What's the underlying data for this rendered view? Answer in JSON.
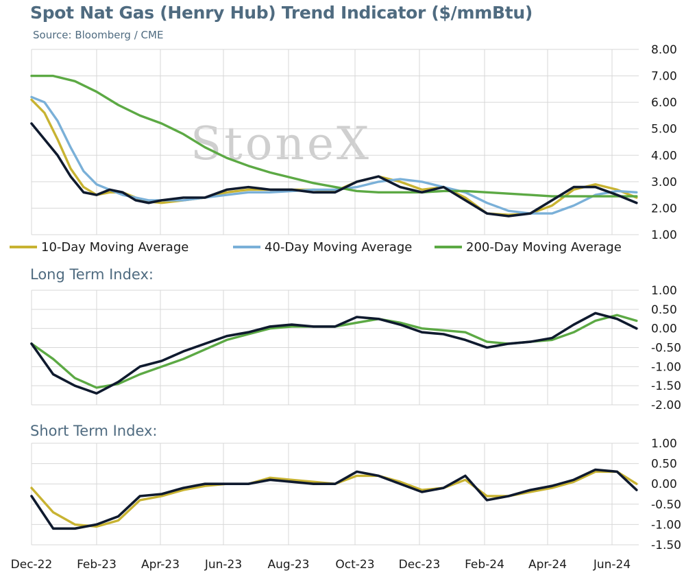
{
  "title": "Spot Nat Gas (Henry Hub) Trend Indicator ($/mmBtu)",
  "source": "Source: Bloomberg / CME",
  "watermark": "StoneX",
  "colors": {
    "spot": "#0f1a2e",
    "ma10": "#c8b332",
    "ma40": "#7ab0d8",
    "ma200": "#5ca944",
    "grid": "#d7d7d7",
    "title": "#4f6b80"
  },
  "chart_data": [
    {
      "type": "line",
      "title": "Spot Nat Gas (Henry Hub) Trend Indicator ($/mmBtu)",
      "x_tick_labels": [
        "Dec-22",
        "Feb-23",
        "Apr-23",
        "Jun-23",
        "Aug-23",
        "Oct-23",
        "Dec-23",
        "Feb-24",
        "Apr-24",
        "Jun-24"
      ],
      "y_tick_labels": [
        "8.00",
        "7.00",
        "6.00",
        "5.00",
        "4.00",
        "3.00",
        "2.00",
        "1.00"
      ],
      "ylim": [
        1,
        8
      ],
      "legend_position": "bottom",
      "series": [
        {
          "key": "spot",
          "values": [
            [
              0,
              5.2
            ],
            [
              0.6,
              4.6
            ],
            [
              1.2,
              4.0
            ],
            [
              1.8,
              3.2
            ],
            [
              2.4,
              2.6
            ],
            [
              3.0,
              2.5
            ],
            [
              3.6,
              2.7
            ],
            [
              4.2,
              2.6
            ],
            [
              4.8,
              2.3
            ],
            [
              5.4,
              2.2
            ],
            [
              6,
              2.3
            ],
            [
              7,
              2.4
            ],
            [
              8,
              2.4
            ],
            [
              9,
              2.7
            ],
            [
              10,
              2.8
            ],
            [
              11,
              2.7
            ],
            [
              12,
              2.7
            ],
            [
              13,
              2.6
            ],
            [
              14,
              2.6
            ],
            [
              15,
              3.0
            ],
            [
              16,
              3.2
            ],
            [
              17,
              2.8
            ],
            [
              18,
              2.6
            ],
            [
              19,
              2.8
            ],
            [
              20,
              2.3
            ],
            [
              21,
              1.8
            ],
            [
              22,
              1.7
            ],
            [
              23,
              1.8
            ],
            [
              24,
              2.3
            ],
            [
              25,
              2.8
            ],
            [
              26,
              2.8
            ],
            [
              27,
              2.5
            ],
            [
              27.9,
              2.2
            ]
          ]
        },
        {
          "key": "ma10",
          "name": "10-Day Moving Average",
          "values": [
            [
              0,
              6.1
            ],
            [
              0.6,
              5.6
            ],
            [
              1.2,
              4.6
            ],
            [
              1.8,
              3.5
            ],
            [
              2.4,
              2.8
            ],
            [
              3.0,
              2.5
            ],
            [
              3.6,
              2.6
            ],
            [
              4.2,
              2.6
            ],
            [
              4.8,
              2.4
            ],
            [
              5.4,
              2.25
            ],
            [
              6,
              2.2
            ],
            [
              7,
              2.3
            ],
            [
              8,
              2.4
            ],
            [
              9,
              2.6
            ],
            [
              10,
              2.7
            ],
            [
              11,
              2.7
            ],
            [
              12,
              2.7
            ],
            [
              13,
              2.7
            ],
            [
              14,
              2.65
            ],
            [
              15,
              3.0
            ],
            [
              16,
              3.2
            ],
            [
              17,
              3.0
            ],
            [
              18,
              2.7
            ],
            [
              19,
              2.8
            ],
            [
              20,
              2.4
            ],
            [
              21,
              1.8
            ],
            [
              22,
              1.75
            ],
            [
              23,
              1.8
            ],
            [
              24,
              2.1
            ],
            [
              25,
              2.7
            ],
            [
              26,
              2.9
            ],
            [
              27,
              2.7
            ],
            [
              27.9,
              2.4
            ]
          ]
        },
        {
          "key": "ma40",
          "name": "40-Day Moving Average",
          "values": [
            [
              0,
              6.2
            ],
            [
              0.6,
              6.0
            ],
            [
              1.2,
              5.3
            ],
            [
              1.8,
              4.3
            ],
            [
              2.4,
              3.4
            ],
            [
              3.0,
              2.9
            ],
            [
              3.6,
              2.7
            ],
            [
              4.2,
              2.5
            ],
            [
              4.8,
              2.4
            ],
            [
              5.4,
              2.3
            ],
            [
              6,
              2.3
            ],
            [
              7,
              2.3
            ],
            [
              8,
              2.4
            ],
            [
              9,
              2.5
            ],
            [
              10,
              2.6
            ],
            [
              11,
              2.6
            ],
            [
              12,
              2.65
            ],
            [
              13,
              2.7
            ],
            [
              14,
              2.7
            ],
            [
              15,
              2.8
            ],
            [
              16,
              3.0
            ],
            [
              17,
              3.1
            ],
            [
              18,
              3.0
            ],
            [
              19,
              2.8
            ],
            [
              20,
              2.6
            ],
            [
              21,
              2.2
            ],
            [
              22,
              1.9
            ],
            [
              23,
              1.8
            ],
            [
              24,
              1.8
            ],
            [
              25,
              2.1
            ],
            [
              26,
              2.5
            ],
            [
              27,
              2.65
            ],
            [
              27.9,
              2.6
            ]
          ]
        },
        {
          "key": "ma200",
          "name": "200-Day Moving Average",
          "values": [
            [
              0,
              7.0
            ],
            [
              1,
              7.0
            ],
            [
              2,
              6.8
            ],
            [
              3,
              6.4
            ],
            [
              4,
              5.9
            ],
            [
              5,
              5.5
            ],
            [
              6,
              5.2
            ],
            [
              7,
              4.8
            ],
            [
              8,
              4.3
            ],
            [
              9,
              3.9
            ],
            [
              10,
              3.6
            ],
            [
              11,
              3.35
            ],
            [
              12,
              3.15
            ],
            [
              13,
              2.95
            ],
            [
              14,
              2.8
            ],
            [
              15,
              2.65
            ],
            [
              16,
              2.6
            ],
            [
              17,
              2.6
            ],
            [
              18,
              2.6
            ],
            [
              19,
              2.65
            ],
            [
              20,
              2.65
            ],
            [
              21,
              2.6
            ],
            [
              22,
              2.55
            ],
            [
              23,
              2.5
            ],
            [
              24,
              2.45
            ],
            [
              25,
              2.45
            ],
            [
              26,
              2.45
            ],
            [
              27,
              2.45
            ],
            [
              27.9,
              2.45
            ]
          ]
        }
      ]
    },
    {
      "type": "line",
      "title": "Long Term Index:",
      "x_tick_labels": [
        "Dec-22",
        "Feb-23",
        "Apr-23",
        "Jun-23",
        "Aug-23",
        "Oct-23",
        "Dec-23",
        "Feb-24",
        "Apr-24",
        "Jun-24"
      ],
      "y_tick_labels": [
        "1.00",
        "0.50",
        "0.00",
        "-0.50",
        "-1.00",
        "-1.50",
        "-2.00"
      ],
      "ylim": [
        -2,
        1
      ],
      "series": [
        {
          "key": "spot",
          "values": [
            [
              0,
              -0.4
            ],
            [
              1,
              -1.2
            ],
            [
              2,
              -1.5
            ],
            [
              3,
              -1.7
            ],
            [
              4,
              -1.4
            ],
            [
              5,
              -1.0
            ],
            [
              6,
              -0.85
            ],
            [
              7,
              -0.6
            ],
            [
              8,
              -0.4
            ],
            [
              9,
              -0.2
            ],
            [
              10,
              -0.1
            ],
            [
              11,
              0.05
            ],
            [
              12,
              0.1
            ],
            [
              13,
              0.05
            ],
            [
              14,
              0.05
            ],
            [
              15,
              0.3
            ],
            [
              16,
              0.25
            ],
            [
              17,
              0.1
            ],
            [
              18,
              -0.1
            ],
            [
              19,
              -0.15
            ],
            [
              20,
              -0.3
            ],
            [
              21,
              -0.5
            ],
            [
              22,
              -0.4
            ],
            [
              23,
              -0.35
            ],
            [
              24,
              -0.25
            ],
            [
              25,
              0.1
            ],
            [
              26,
              0.4
            ],
            [
              27,
              0.25
            ],
            [
              27.9,
              0.0
            ]
          ]
        },
        {
          "key": "ma200",
          "values": [
            [
              0,
              -0.4
            ],
            [
              1,
              -0.8
            ],
            [
              2,
              -1.3
            ],
            [
              3,
              -1.55
            ],
            [
              4,
              -1.45
            ],
            [
              5,
              -1.2
            ],
            [
              6,
              -1.0
            ],
            [
              7,
              -0.8
            ],
            [
              8,
              -0.55
            ],
            [
              9,
              -0.3
            ],
            [
              10,
              -0.15
            ],
            [
              11,
              0.0
            ],
            [
              12,
              0.05
            ],
            [
              13,
              0.05
            ],
            [
              14,
              0.05
            ],
            [
              15,
              0.15
            ],
            [
              16,
              0.25
            ],
            [
              17,
              0.15
            ],
            [
              18,
              0.0
            ],
            [
              19,
              -0.05
            ],
            [
              20,
              -0.1
            ],
            [
              21,
              -0.35
            ],
            [
              22,
              -0.4
            ],
            [
              23,
              -0.35
            ],
            [
              24,
              -0.3
            ],
            [
              25,
              -0.1
            ],
            [
              26,
              0.2
            ],
            [
              27,
              0.35
            ],
            [
              27.9,
              0.2
            ]
          ]
        }
      ]
    },
    {
      "type": "line",
      "title": "Short Term Index:",
      "x_tick_labels": [
        "Dec-22",
        "Feb-23",
        "Apr-23",
        "Jun-23",
        "Aug-23",
        "Oct-23",
        "Dec-23",
        "Feb-24",
        "Apr-24",
        "Jun-24"
      ],
      "y_tick_labels": [
        "1.00",
        "0.50",
        "0.00",
        "-0.50",
        "-1.00",
        "-1.50"
      ],
      "ylim": [
        -1.5,
        1
      ],
      "series": [
        {
          "key": "spot",
          "values": [
            [
              0,
              -0.3
            ],
            [
              1,
              -1.1
            ],
            [
              2,
              -1.1
            ],
            [
              3,
              -1.0
            ],
            [
              4,
              -0.8
            ],
            [
              5,
              -0.3
            ],
            [
              6,
              -0.25
            ],
            [
              7,
              -0.1
            ],
            [
              8,
              0.0
            ],
            [
              9,
              0.0
            ],
            [
              10,
              0.0
            ],
            [
              11,
              0.1
            ],
            [
              12,
              0.05
            ],
            [
              13,
              0.0
            ],
            [
              14,
              0.0
            ],
            [
              15,
              0.3
            ],
            [
              16,
              0.2
            ],
            [
              17,
              0.0
            ],
            [
              18,
              -0.2
            ],
            [
              19,
              -0.1
            ],
            [
              20,
              0.2
            ],
            [
              21,
              -0.4
            ],
            [
              22,
              -0.3
            ],
            [
              23,
              -0.15
            ],
            [
              24,
              -0.05
            ],
            [
              25,
              0.1
            ],
            [
              26,
              0.35
            ],
            [
              27,
              0.3
            ],
            [
              27.9,
              -0.15
            ]
          ]
        },
        {
          "key": "ma10",
          "values": [
            [
              0,
              -0.1
            ],
            [
              1,
              -0.7
            ],
            [
              2,
              -1.0
            ],
            [
              3,
              -1.05
            ],
            [
              4,
              -0.9
            ],
            [
              5,
              -0.4
            ],
            [
              6,
              -0.3
            ],
            [
              7,
              -0.15
            ],
            [
              8,
              -0.05
            ],
            [
              9,
              0.0
            ],
            [
              10,
              0.0
            ],
            [
              11,
              0.15
            ],
            [
              12,
              0.1
            ],
            [
              13,
              0.05
            ],
            [
              14,
              0.0
            ],
            [
              15,
              0.2
            ],
            [
              16,
              0.2
            ],
            [
              17,
              0.05
            ],
            [
              18,
              -0.15
            ],
            [
              19,
              -0.1
            ],
            [
              20,
              0.1
            ],
            [
              21,
              -0.3
            ],
            [
              22,
              -0.3
            ],
            [
              23,
              -0.2
            ],
            [
              24,
              -0.1
            ],
            [
              25,
              0.05
            ],
            [
              26,
              0.3
            ],
            [
              27,
              0.3
            ],
            [
              27.9,
              0.0
            ]
          ]
        }
      ]
    }
  ]
}
